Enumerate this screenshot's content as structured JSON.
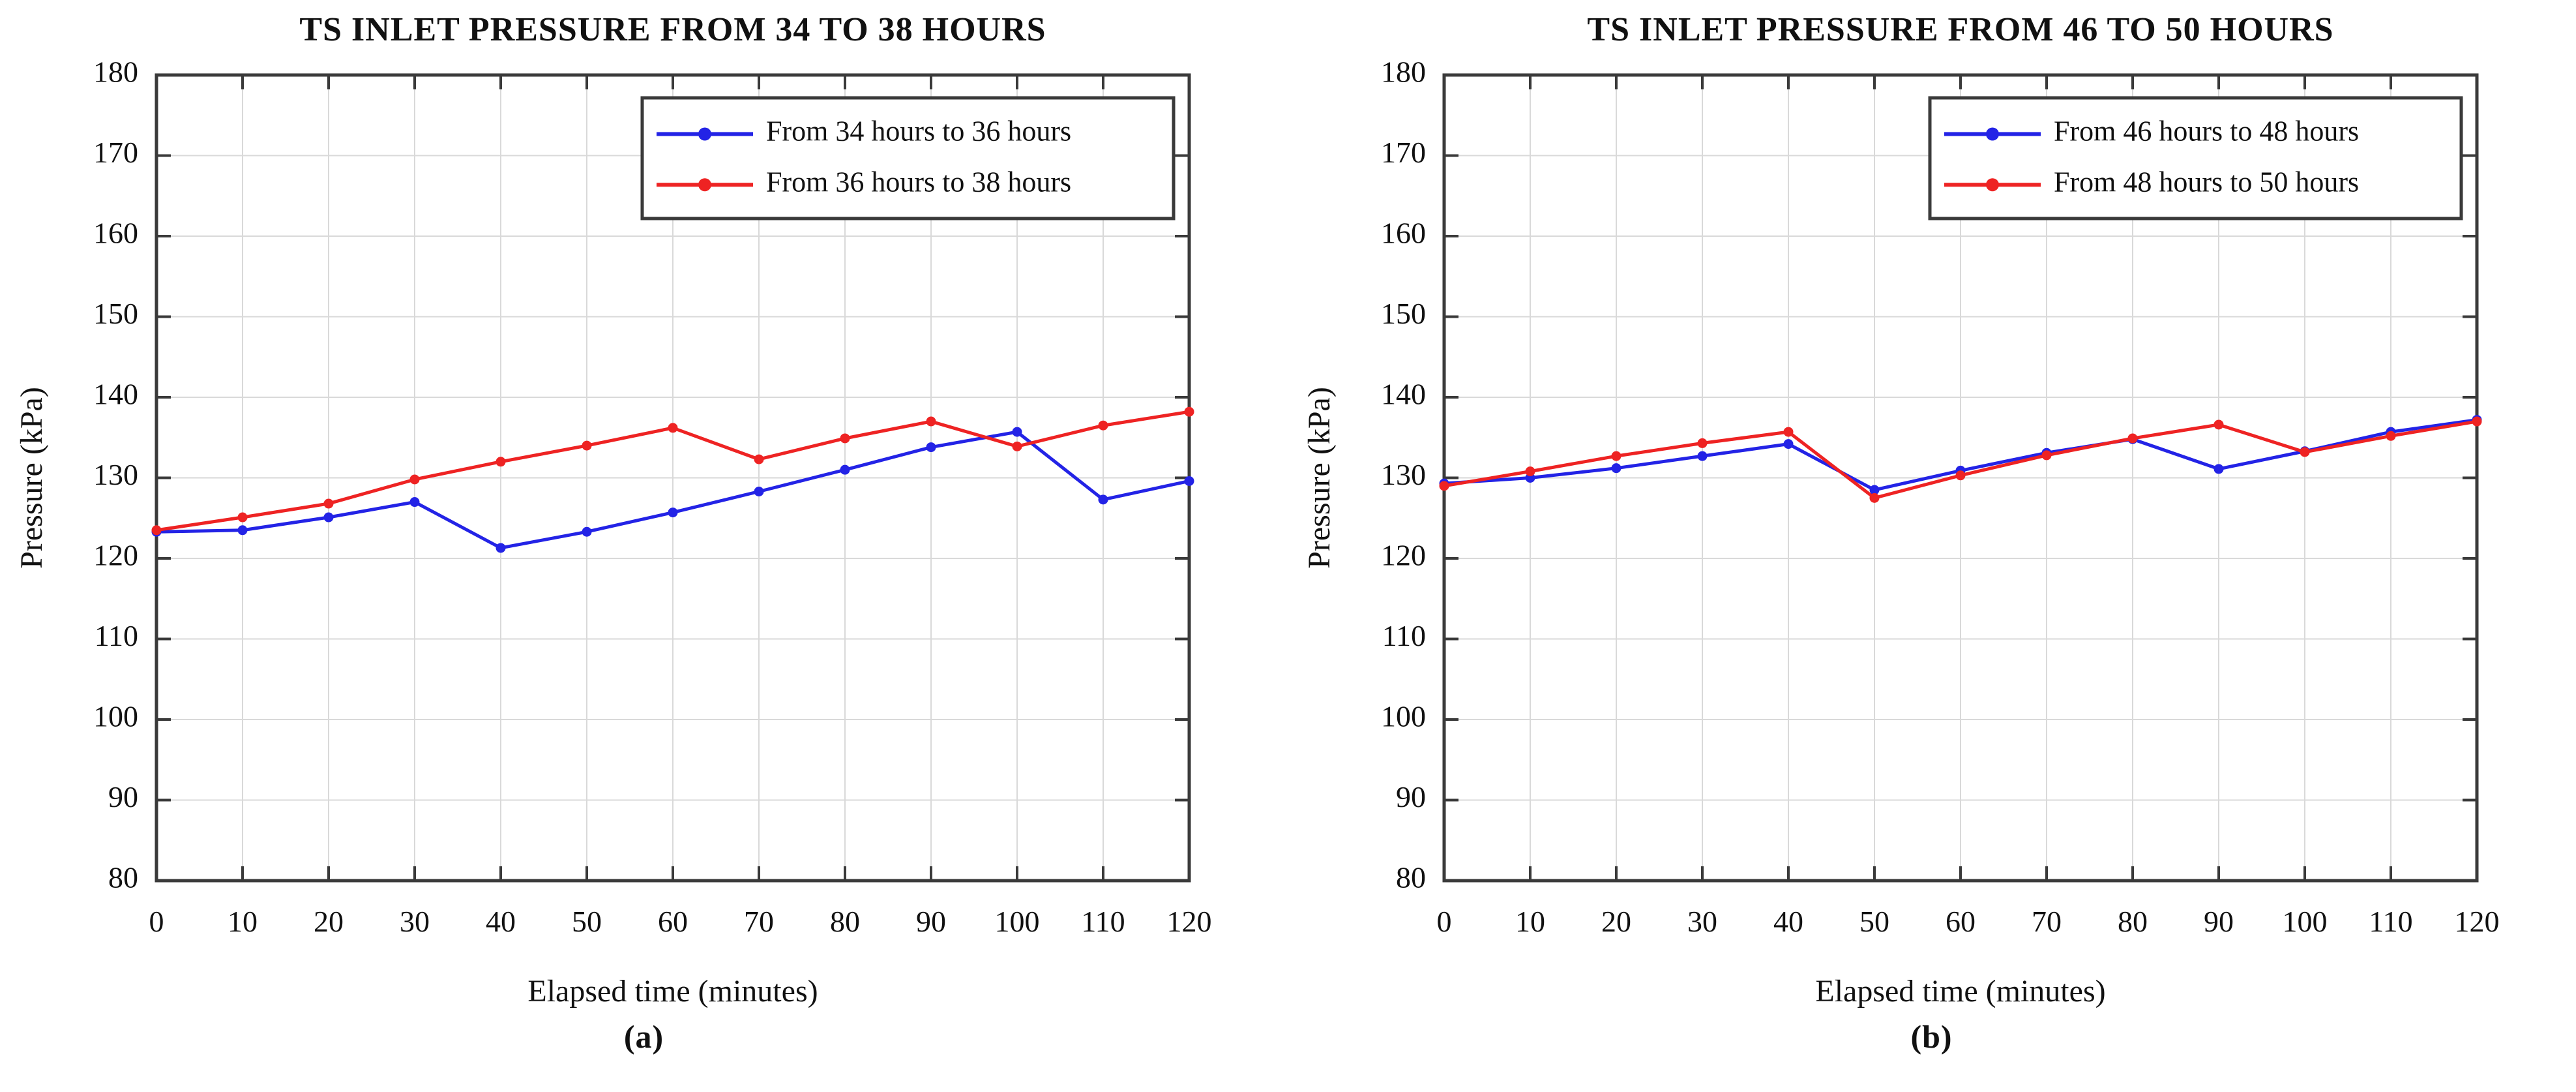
{
  "page": {
    "background": "#ffffff",
    "text_color": "#111111",
    "grid_color": "#d9d9d9",
    "axis_color": "#3a3a3a",
    "legend_border_color": "#3a3a3a",
    "legend_background": "#ffffff"
  },
  "chart_data": [
    {
      "type": "line",
      "caption": "(a)",
      "title": "TS INLET PRESSURE FROM 34 TO 38 HOURS",
      "xlabel": "Elapsed time (minutes)",
      "ylabel": "Pressure (kPa)",
      "xlim": [
        0,
        120
      ],
      "ylim": [
        80,
        180
      ],
      "xticks": [
        0,
        10,
        20,
        30,
        40,
        50,
        60,
        70,
        80,
        90,
        100,
        110,
        120
      ],
      "yticks": [
        80,
        90,
        100,
        110,
        120,
        130,
        140,
        150,
        160,
        170,
        180
      ],
      "grid": true,
      "legend_position": "top-right",
      "x": [
        0,
        10,
        20,
        30,
        40,
        50,
        60,
        70,
        80,
        90,
        100,
        110,
        120
      ],
      "series": [
        {
          "name": "From 34 hours to 36 hours",
          "color": "#2323e6",
          "marker": "dot",
          "values": [
            123.3,
            123.5,
            125.1,
            127.0,
            121.3,
            123.3,
            125.7,
            128.3,
            131.0,
            133.8,
            135.7,
            127.3,
            129.6
          ]
        },
        {
          "name": "From 36 hours to 38 hours",
          "color": "#ee2323",
          "marker": "dot",
          "values": [
            123.5,
            125.1,
            126.8,
            129.8,
            132.0,
            134.0,
            136.2,
            132.3,
            134.9,
            137.0,
            133.9,
            136.5,
            138.2
          ]
        }
      ]
    },
    {
      "type": "line",
      "caption": "(b)",
      "title": "TS INLET PRESSURE FROM 46 TO 50 HOURS",
      "xlabel": "Elapsed time (minutes)",
      "ylabel": "Pressure (kPa)",
      "xlim": [
        0,
        120
      ],
      "ylim": [
        80,
        180
      ],
      "xticks": [
        0,
        10,
        20,
        30,
        40,
        50,
        60,
        70,
        80,
        90,
        100,
        110,
        120
      ],
      "yticks": [
        80,
        90,
        100,
        110,
        120,
        130,
        140,
        150,
        160,
        170,
        180
      ],
      "grid": true,
      "legend_position": "top-right",
      "x": [
        0,
        10,
        20,
        30,
        40,
        50,
        60,
        70,
        80,
        90,
        100,
        110,
        120
      ],
      "series": [
        {
          "name": "From 46 hours to 48 hours",
          "color": "#2323e6",
          "marker": "dot",
          "values": [
            129.3,
            130.0,
            131.2,
            132.7,
            134.2,
            128.5,
            130.9,
            133.1,
            134.8,
            131.1,
            133.3,
            135.7,
            137.2
          ]
        },
        {
          "name": "From 48 hours to 50 hours",
          "color": "#ee2323",
          "marker": "dot",
          "values": [
            129.0,
            130.8,
            132.7,
            134.3,
            135.7,
            127.5,
            130.3,
            132.8,
            134.9,
            136.6,
            133.2,
            135.2,
            137.0
          ]
        }
      ]
    }
  ]
}
